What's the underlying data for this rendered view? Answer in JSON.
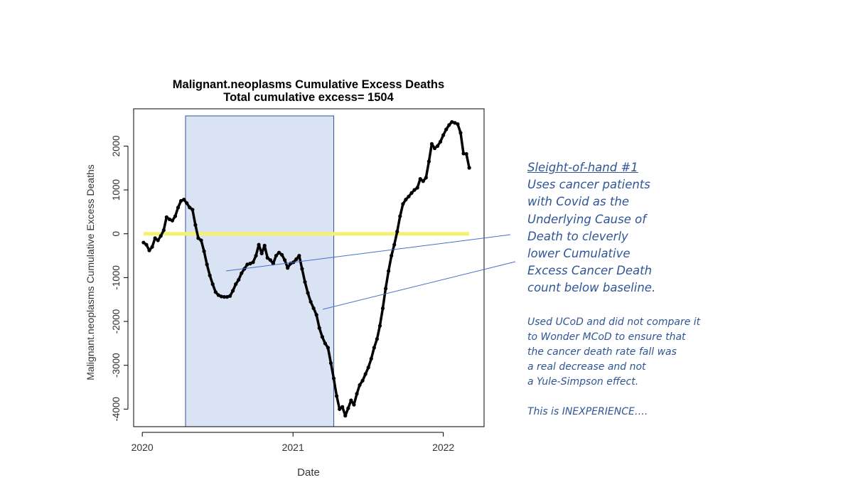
{
  "chart_data": {
    "type": "line",
    "title": "Malignant.neoplasms Cumulative Excess Deaths",
    "subtitle": "Total cumulative excess= 1504",
    "xlabel": "Date",
    "ylabel": "Malignant.neoplasms Cumulative Excess Deaths",
    "xlim": [
      "2019-12-11",
      "2022-04-10"
    ],
    "ylim": [
      -4400,
      2850
    ],
    "x_ticks": [
      {
        "value": "2020-01-01",
        "label": "2020"
      },
      {
        "value": "2021-01-01",
        "label": "2021"
      },
      {
        "value": "2022-01-01",
        "label": "2022"
      }
    ],
    "y_ticks": [
      -4000,
      -3000,
      -2000,
      -1000,
      0,
      1000,
      2000
    ],
    "shaded_period": [
      "2020-04-15",
      "2021-04-10"
    ],
    "reference_line": {
      "y": 0,
      "color": "#f2f270"
    },
    "series": [
      {
        "color": "#000000",
        "points": [
          [
            "2020-01-04",
            -200
          ],
          [
            "2020-01-11",
            -250
          ],
          [
            "2020-01-18",
            -380
          ],
          [
            "2020-01-25",
            -300
          ],
          [
            "2020-02-01",
            -100
          ],
          [
            "2020-02-08",
            -150
          ],
          [
            "2020-02-15",
            -50
          ],
          [
            "2020-02-22",
            80
          ],
          [
            "2020-02-29",
            380
          ],
          [
            "2020-03-07",
            330
          ],
          [
            "2020-03-14",
            300
          ],
          [
            "2020-03-21",
            400
          ],
          [
            "2020-03-28",
            600
          ],
          [
            "2020-04-04",
            750
          ],
          [
            "2020-04-11",
            780
          ],
          [
            "2020-04-18",
            700
          ],
          [
            "2020-04-25",
            600
          ],
          [
            "2020-05-02",
            550
          ],
          [
            "2020-05-09",
            200
          ],
          [
            "2020-05-16",
            -100
          ],
          [
            "2020-05-23",
            -150
          ],
          [
            "2020-05-30",
            -400
          ],
          [
            "2020-06-06",
            -700
          ],
          [
            "2020-06-13",
            -950
          ],
          [
            "2020-06-20",
            -1150
          ],
          [
            "2020-06-27",
            -1330
          ],
          [
            "2020-07-04",
            -1400
          ],
          [
            "2020-07-11",
            -1430
          ],
          [
            "2020-07-18",
            -1440
          ],
          [
            "2020-07-25",
            -1440
          ],
          [
            "2020-08-01",
            -1420
          ],
          [
            "2020-08-08",
            -1300
          ],
          [
            "2020-08-15",
            -1150
          ],
          [
            "2020-08-22",
            -1050
          ],
          [
            "2020-08-29",
            -900
          ],
          [
            "2020-09-05",
            -800
          ],
          [
            "2020-09-12",
            -700
          ],
          [
            "2020-09-19",
            -680
          ],
          [
            "2020-09-26",
            -650
          ],
          [
            "2020-10-03",
            -500
          ],
          [
            "2020-10-10",
            -250
          ],
          [
            "2020-10-17",
            -450
          ],
          [
            "2020-10-24",
            -270
          ],
          [
            "2020-10-31",
            -550
          ],
          [
            "2020-11-07",
            -600
          ],
          [
            "2020-11-14",
            -680
          ],
          [
            "2020-11-21",
            -500
          ],
          [
            "2020-11-28",
            -430
          ],
          [
            "2020-12-05",
            -480
          ],
          [
            "2020-12-12",
            -600
          ],
          [
            "2020-12-19",
            -780
          ],
          [
            "2020-12-26",
            -680
          ],
          [
            "2021-01-02",
            -650
          ],
          [
            "2021-01-09",
            -580
          ],
          [
            "2021-01-16",
            -500
          ],
          [
            "2021-01-23",
            -800
          ],
          [
            "2021-01-30",
            -1100
          ],
          [
            "2021-02-06",
            -1350
          ],
          [
            "2021-02-13",
            -1550
          ],
          [
            "2021-02-20",
            -1700
          ],
          [
            "2021-02-27",
            -1850
          ],
          [
            "2021-03-06",
            -2150
          ],
          [
            "2021-03-13",
            -2350
          ],
          [
            "2021-03-20",
            -2500
          ],
          [
            "2021-03-27",
            -2600
          ],
          [
            "2021-04-03",
            -2950
          ],
          [
            "2021-04-10",
            -3300
          ],
          [
            "2021-04-17",
            -3700
          ],
          [
            "2021-04-24",
            -4000
          ],
          [
            "2021-05-01",
            -3950
          ],
          [
            "2021-05-08",
            -4150
          ],
          [
            "2021-05-15",
            -3980
          ],
          [
            "2021-05-22",
            -3800
          ],
          [
            "2021-05-29",
            -3900
          ],
          [
            "2021-06-05",
            -3650
          ],
          [
            "2021-06-12",
            -3450
          ],
          [
            "2021-06-19",
            -3350
          ],
          [
            "2021-06-26",
            -3200
          ],
          [
            "2021-07-03",
            -3050
          ],
          [
            "2021-07-10",
            -2850
          ],
          [
            "2021-07-17",
            -2600
          ],
          [
            "2021-07-24",
            -2400
          ],
          [
            "2021-07-31",
            -2100
          ],
          [
            "2021-08-07",
            -1700
          ],
          [
            "2021-08-14",
            -1250
          ],
          [
            "2021-08-21",
            -850
          ],
          [
            "2021-08-28",
            -500
          ],
          [
            "2021-09-04",
            -250
          ],
          [
            "2021-09-11",
            50
          ],
          [
            "2021-09-18",
            400
          ],
          [
            "2021-09-25",
            680
          ],
          [
            "2021-10-02",
            780
          ],
          [
            "2021-10-09",
            850
          ],
          [
            "2021-10-16",
            930
          ],
          [
            "2021-10-23",
            1000
          ],
          [
            "2021-10-30",
            1050
          ],
          [
            "2021-11-06",
            1250
          ],
          [
            "2021-11-13",
            1200
          ],
          [
            "2021-11-20",
            1280
          ],
          [
            "2021-11-27",
            1650
          ],
          [
            "2021-12-04",
            2050
          ],
          [
            "2021-12-11",
            1950
          ],
          [
            "2021-12-18",
            2000
          ],
          [
            "2021-12-25",
            2100
          ],
          [
            "2022-01-01",
            2250
          ],
          [
            "2022-01-08",
            2380
          ],
          [
            "2022-01-15",
            2480
          ],
          [
            "2022-01-22",
            2550
          ],
          [
            "2022-01-29",
            2530
          ],
          [
            "2022-02-05",
            2500
          ],
          [
            "2022-02-12",
            2300
          ],
          [
            "2022-02-19",
            1830
          ],
          [
            "2022-02-26",
            1820
          ],
          [
            "2022-03-05",
            1504
          ]
        ]
      }
    ]
  },
  "annotation": {
    "heading": "Sleight-of-hand #1",
    "lines": [
      "Uses cancer patients",
      "with Covid as the",
      "Underlying Cause of",
      "Death to cleverly",
      "lower Cumulative",
      "Excess Cancer Death",
      "count below baseline."
    ],
    "note_lines": [
      "Used UCoD and did not compare it",
      "to Wonder MCoD to ensure that",
      "the cancer death rate fall was",
      "a real decrease and not",
      "a Yule-Simpson effect."
    ],
    "conclusion": "This is INEXPERIENCE….",
    "color": "#2f5597"
  }
}
